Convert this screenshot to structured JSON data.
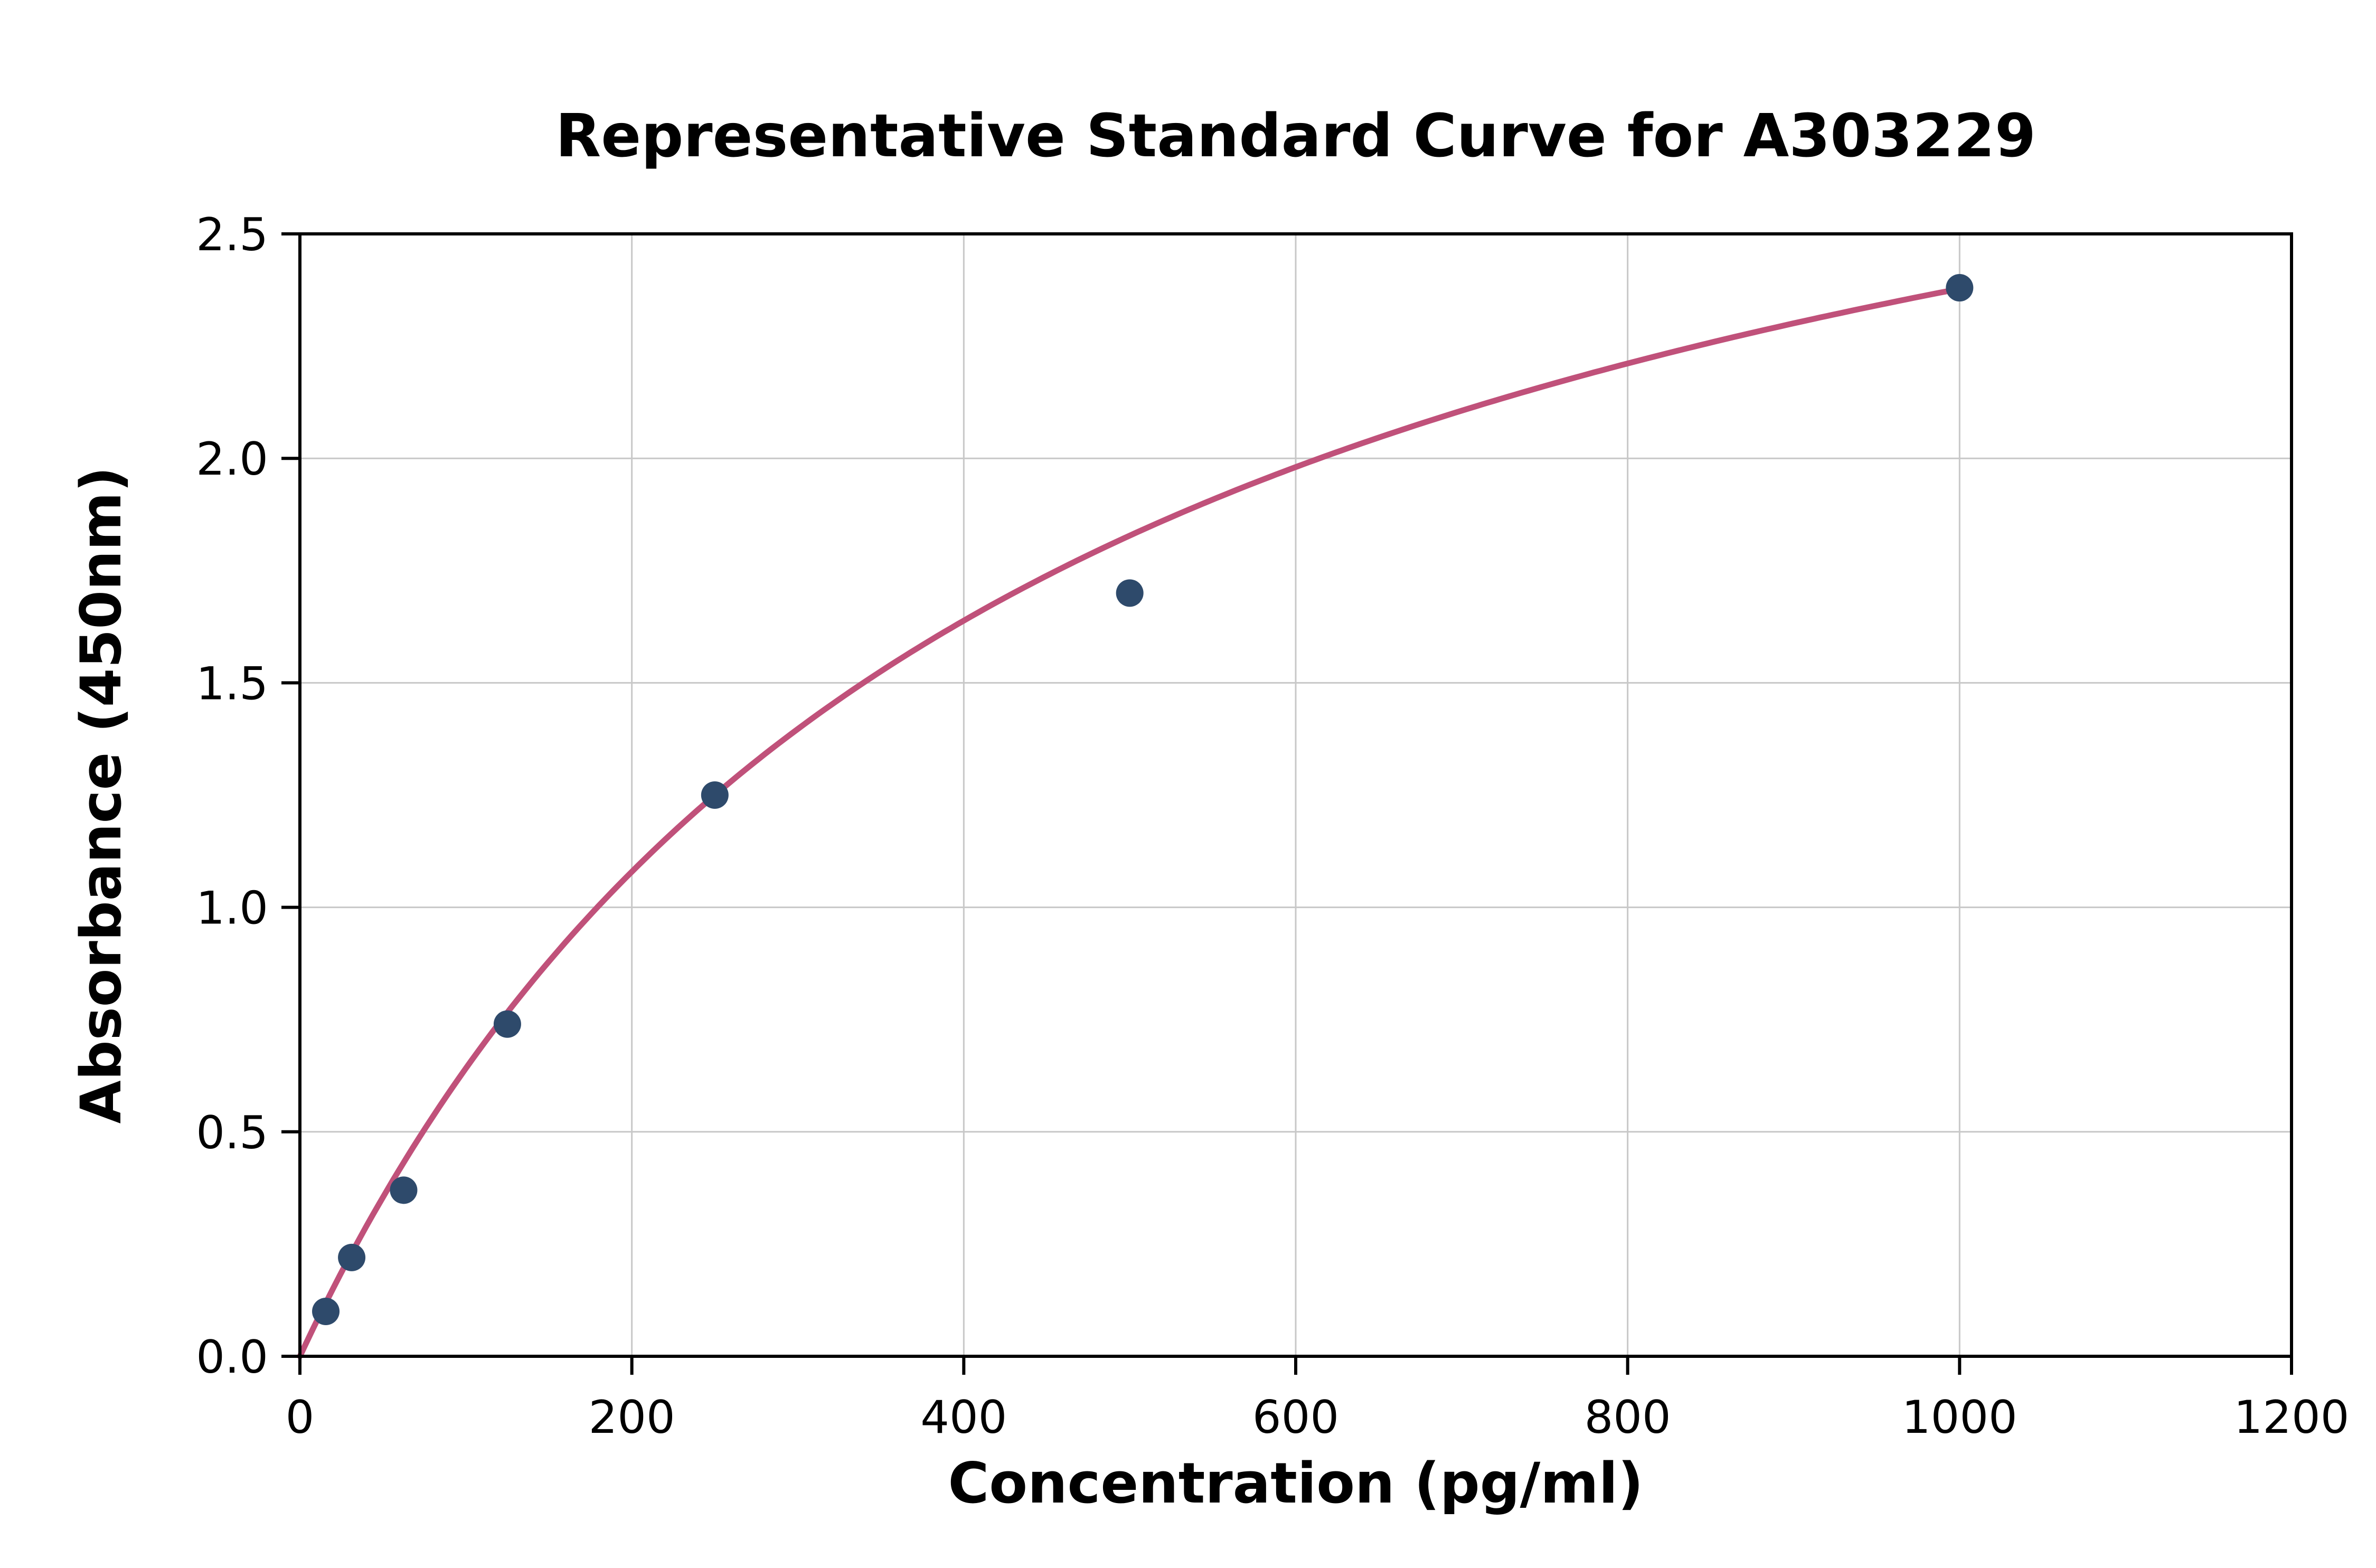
{
  "chart_data": {
    "type": "scatter",
    "title": "Representative Standard Curve for A303229",
    "xlabel": "Concentration (pg/ml)",
    "ylabel": "Absorbance (450nm)",
    "xlim": [
      0,
      1200
    ],
    "ylim": [
      0,
      2.5
    ],
    "xticks": [
      0,
      200,
      400,
      600,
      800,
      1000,
      1200
    ],
    "xtick_labels": [
      "0",
      "200",
      "400",
      "600",
      "800",
      "1000",
      "1200"
    ],
    "yticks": [
      0.0,
      0.5,
      1.0,
      1.5,
      2.0,
      2.5
    ],
    "ytick_labels": [
      "0.0",
      "0.5",
      "1.0",
      "1.5",
      "2.0",
      "2.5"
    ],
    "grid": true,
    "legend": "none",
    "points": [
      {
        "x": 15.6,
        "y": 0.1
      },
      {
        "x": 31.2,
        "y": 0.22
      },
      {
        "x": 62.5,
        "y": 0.37
      },
      {
        "x": 125,
        "y": 0.74
      },
      {
        "x": 250,
        "y": 1.25
      },
      {
        "x": 500,
        "y": 1.7
      },
      {
        "x": 1000,
        "y": 2.38
      }
    ],
    "fit_curve": {
      "model": "saturation (michaelis-menten)",
      "vmax": 3.4,
      "km": 430,
      "x_start": 0,
      "x_end": 1002
    },
    "colors": {
      "points": "#2e4a6b",
      "curve": "#c0517a",
      "grid": "#c8c8c8",
      "axis": "#000000",
      "background": "#ffffff"
    }
  }
}
